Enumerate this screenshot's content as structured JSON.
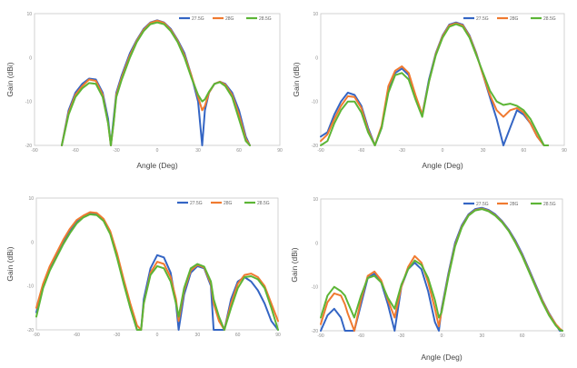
{
  "colors": {
    "27.5G": "#3465c4",
    "28G": "#f07a30",
    "28.5G": "#5cb536",
    "frame": "#c8c8c8"
  },
  "chart_data": [
    {
      "type": "line",
      "xlabel": "Angle (Deg)",
      "ylabel": "Gain (dBi)",
      "xlim": [
        -90,
        90
      ],
      "ylim": [
        -20,
        10
      ],
      "xticks": [
        "-90",
        "-60",
        "-30",
        "0",
        "30",
        "60",
        "90"
      ],
      "yticks": [
        "10",
        "0",
        "-10",
        "-20"
      ],
      "grid": false,
      "legend": "top-right",
      "series": [
        {
          "name": "27.5G",
          "x": [
            -70,
            -65,
            -60,
            -55,
            -50,
            -45,
            -40,
            -36,
            -34,
            -32,
            -30,
            -26,
            -20,
            -15,
            -10,
            -5,
            0,
            5,
            10,
            15,
            20,
            25,
            30,
            33,
            35,
            38,
            42,
            46,
            50,
            55,
            60,
            65,
            68
          ],
          "y": [
            -20,
            -12,
            -8,
            -6,
            -4.8,
            -5,
            -8,
            -14,
            -20,
            -14,
            -8,
            -4,
            1,
            4,
            6.5,
            8,
            8.5,
            8,
            6.5,
            4,
            1,
            -4,
            -10,
            -20,
            -12,
            -8,
            -6,
            -5.5,
            -6,
            -8,
            -12,
            -18,
            -20
          ]
        },
        {
          "name": "28G",
          "x": [
            -70,
            -65,
            -60,
            -55,
            -50,
            -45,
            -40,
            -36,
            -34,
            -32,
            -30,
            -26,
            -20,
            -15,
            -10,
            -5,
            0,
            5,
            10,
            15,
            20,
            25,
            30,
            33,
            35,
            38,
            42,
            46,
            50,
            55,
            60,
            65,
            68
          ],
          "y": [
            -20,
            -12.5,
            -8.5,
            -6.5,
            -5,
            -5.3,
            -8.5,
            -15,
            -20,
            -15,
            -8.5,
            -4.5,
            0.5,
            3.8,
            6.3,
            7.9,
            8.4,
            7.9,
            6.3,
            3.8,
            0.5,
            -4,
            -9,
            -12,
            -11,
            -8,
            -6,
            -5.5,
            -6.2,
            -8.5,
            -13,
            -18.5,
            -20
          ]
        },
        {
          "name": "28.5G",
          "x": [
            -70,
            -65,
            -60,
            -55,
            -50,
            -45,
            -40,
            -36,
            -34,
            -32,
            -30,
            -26,
            -20,
            -15,
            -10,
            -5,
            0,
            5,
            10,
            15,
            20,
            25,
            30,
            33,
            35,
            38,
            42,
            46,
            50,
            55,
            60,
            65,
            68
          ],
          "y": [
            -20,
            -13,
            -9,
            -7,
            -5.8,
            -6,
            -9,
            -15,
            -20,
            -15,
            -9,
            -5,
            0,
            3.5,
            6,
            7.6,
            8,
            7.6,
            6,
            3.5,
            0,
            -4.5,
            -8.5,
            -10,
            -9.5,
            -7.8,
            -6,
            -5.6,
            -6.5,
            -9,
            -14,
            -19,
            -20
          ]
        }
      ]
    },
    {
      "type": "line",
      "xlabel": "Angle (Deg)",
      "ylabel": "Gain (dBi)",
      "xlim": [
        -90,
        90
      ],
      "ylim": [
        -20,
        10
      ],
      "xticks": [
        "-90",
        "-60",
        "-30",
        "0",
        "30",
        "60",
        "90"
      ],
      "yticks": [
        "10",
        "0",
        "-10",
        "-20"
      ],
      "grid": false,
      "legend": "top-right",
      "series": [
        {
          "name": "27.5G",
          "x": [
            -90,
            -85,
            -80,
            -75,
            -70,
            -65,
            -60,
            -55,
            -50,
            -45,
            -40,
            -35,
            -30,
            -25,
            -20,
            -15,
            -10,
            -5,
            0,
            5,
            10,
            15,
            20,
            25,
            30,
            35,
            40,
            45,
            50,
            55,
            60,
            65,
            70,
            75,
            78
          ],
          "y": [
            -18,
            -17,
            -13,
            -10,
            -8,
            -8.5,
            -11,
            -16,
            -20,
            -16,
            -7,
            -3.5,
            -2.5,
            -4,
            -9,
            -13,
            -5,
            1,
            5,
            7.5,
            8,
            7.5,
            5,
            1,
            -4,
            -9,
            -14,
            -20,
            -16,
            -12,
            -13,
            -15,
            -18,
            -20,
            -20
          ]
        },
        {
          "name": "28G",
          "x": [
            -90,
            -85,
            -80,
            -75,
            -70,
            -65,
            -60,
            -55,
            -50,
            -45,
            -40,
            -35,
            -30,
            -25,
            -20,
            -15,
            -10,
            -5,
            0,
            5,
            10,
            15,
            20,
            25,
            30,
            35,
            40,
            45,
            50,
            55,
            60,
            65,
            70,
            75,
            78
          ],
          "y": [
            -19,
            -17.5,
            -14,
            -11,
            -8.8,
            -9,
            -11.5,
            -16.5,
            -20,
            -15.5,
            -6.5,
            -3,
            -2,
            -3.5,
            -8.5,
            -13,
            -5.5,
            0.8,
            4.8,
            7.3,
            7.8,
            7.3,
            4.8,
            0.8,
            -4,
            -8.5,
            -12,
            -13.5,
            -12,
            -11.5,
            -12.5,
            -15,
            -18,
            -20,
            -20
          ]
        },
        {
          "name": "28.5G",
          "x": [
            -90,
            -85,
            -80,
            -75,
            -70,
            -65,
            -60,
            -55,
            -50,
            -45,
            -40,
            -35,
            -30,
            -25,
            -20,
            -15,
            -10,
            -5,
            0,
            5,
            10,
            15,
            20,
            25,
            30,
            35,
            40,
            45,
            50,
            55,
            60,
            65,
            70,
            75,
            78
          ],
          "y": [
            -20,
            -19,
            -15,
            -12,
            -10,
            -10,
            -12.5,
            -17,
            -20,
            -16,
            -8,
            -4,
            -3.5,
            -5,
            -9.5,
            -13.5,
            -5.5,
            0.5,
            4.5,
            7,
            7.6,
            7,
            4.5,
            0.5,
            -3.5,
            -7.5,
            -10,
            -10.8,
            -10.5,
            -11,
            -12,
            -14,
            -17,
            -20,
            -20
          ]
        }
      ]
    },
    {
      "type": "line",
      "xlabel": "",
      "ylabel": "Gain (dBi)",
      "xlim": [
        -90,
        90
      ],
      "ylim": [
        -20,
        10
      ],
      "xticks": [
        "-90",
        "-60",
        "-30",
        "0",
        "30",
        "60",
        "90"
      ],
      "yticks": [
        "10",
        "0",
        "-10",
        "-20"
      ],
      "grid": false,
      "legend": "top-right",
      "series": [
        {
          "name": "27.5G",
          "x": [
            -90,
            -85,
            -80,
            -75,
            -70,
            -65,
            -60,
            -55,
            -50,
            -45,
            -40,
            -35,
            -30,
            -25,
            -20,
            -15,
            -12,
            -10,
            -5,
            0,
            5,
            10,
            14,
            16,
            20,
            25,
            30,
            35,
            40,
            42,
            46,
            50,
            55,
            60,
            65,
            70,
            75,
            80,
            85,
            90
          ],
          "y": [
            -16,
            -10,
            -6,
            -3,
            0,
            2.5,
            4.5,
            5.8,
            6.5,
            6.3,
            5,
            2,
            -3,
            -9,
            -15,
            -20,
            -20,
            -13,
            -6,
            -3,
            -3.5,
            -7,
            -14,
            -20,
            -12,
            -7,
            -5.5,
            -6,
            -10,
            -20,
            -20,
            -20,
            -13,
            -9,
            -8,
            -9,
            -11,
            -14,
            -18,
            -20
          ]
        },
        {
          "name": "28G",
          "x": [
            -90,
            -85,
            -80,
            -75,
            -70,
            -65,
            -60,
            -55,
            -50,
            -45,
            -40,
            -35,
            -30,
            -25,
            -20,
            -15,
            -12,
            -10,
            -5,
            0,
            5,
            10,
            14,
            16,
            20,
            25,
            30,
            35,
            40,
            42,
            46,
            50,
            55,
            60,
            65,
            70,
            75,
            80,
            85,
            90
          ],
          "y": [
            -15,
            -9.5,
            -5.5,
            -2.5,
            0.5,
            3,
            5,
            6,
            6.8,
            6.6,
            5.3,
            2.5,
            -2.5,
            -8.5,
            -14,
            -19,
            -20,
            -14,
            -7,
            -4.5,
            -5,
            -8,
            -13,
            -18,
            -11,
            -6.5,
            -5.2,
            -5.8,
            -9.5,
            -14,
            -18,
            -20,
            -14,
            -9.5,
            -7.5,
            -7.2,
            -8,
            -10,
            -14,
            -18
          ]
        },
        {
          "name": "28.5G",
          "x": [
            -90,
            -85,
            -80,
            -75,
            -70,
            -65,
            -60,
            -55,
            -50,
            -45,
            -40,
            -35,
            -30,
            -25,
            -20,
            -15,
            -12,
            -10,
            -5,
            0,
            5,
            10,
            14,
            16,
            20,
            25,
            30,
            35,
            40,
            42,
            46,
            50,
            55,
            60,
            65,
            70,
            75,
            80,
            85,
            90
          ],
          "y": [
            -17,
            -10.5,
            -6.5,
            -3.5,
            -0.5,
            2,
            4.2,
            5.6,
            6.3,
            6.1,
            4.8,
            1.8,
            -3.5,
            -9.5,
            -15,
            -20,
            -20,
            -14,
            -7.5,
            -5.5,
            -6,
            -9,
            -14,
            -17,
            -10.5,
            -6,
            -5,
            -5.6,
            -9,
            -13,
            -17,
            -20,
            -15,
            -10.5,
            -8,
            -7.8,
            -8.5,
            -10.5,
            -15,
            -20
          ]
        }
      ]
    },
    {
      "type": "line",
      "xlabel": "Angle (Deg)",
      "ylabel": "Gain (dBi)",
      "xlim": [
        -90,
        90
      ],
      "ylim": [
        -20,
        10
      ],
      "xticks": [
        "-90",
        "-60",
        "-30",
        "0",
        "30",
        "60",
        "90"
      ],
      "yticks": [
        "10",
        "0",
        "-10",
        "-20"
      ],
      "grid": false,
      "legend": "top-right",
      "series": [
        {
          "name": "27.5G",
          "x": [
            -90,
            -85,
            -80,
            -75,
            -72,
            -70,
            -65,
            -60,
            -55,
            -50,
            -45,
            -40,
            -35,
            -30,
            -25,
            -20,
            -15,
            -10,
            -5,
            -2,
            0,
            5,
            10,
            15,
            20,
            25,
            30,
            35,
            40,
            45,
            50,
            55,
            60,
            65,
            70,
            75,
            80,
            85,
            88,
            90
          ],
          "y": [
            -20,
            -16.5,
            -15,
            -17,
            -20,
            -20,
            -20,
            -14,
            -8,
            -7,
            -9,
            -14,
            -20,
            -10,
            -6,
            -4.5,
            -6,
            -11,
            -18,
            -20,
            -15,
            -7,
            0,
            4,
            6.5,
            7.7,
            8,
            7.5,
            6.5,
            5,
            3,
            0.5,
            -2.5,
            -6,
            -9.5,
            -13,
            -16,
            -18.5,
            -20,
            -20
          ]
        },
        {
          "name": "28G",
          "x": [
            -90,
            -85,
            -80,
            -75,
            -72,
            -70,
            -65,
            -60,
            -55,
            -50,
            -45,
            -40,
            -35,
            -30,
            -25,
            -20,
            -15,
            -10,
            -5,
            -2,
            0,
            5,
            10,
            15,
            20,
            25,
            30,
            35,
            40,
            45,
            50,
            55,
            60,
            65,
            70,
            75,
            80,
            85,
            88,
            90
          ],
          "y": [
            -18.5,
            -13.5,
            -11.5,
            -12,
            -14,
            -16,
            -20,
            -13,
            -7.5,
            -6.5,
            -8.5,
            -13,
            -17,
            -10,
            -5.5,
            -3,
            -4.5,
            -9,
            -15,
            -19,
            -15.5,
            -7.5,
            -0.5,
            3.7,
            6.3,
            7.5,
            7.8,
            7.3,
            6.3,
            4.8,
            2.8,
            0.2,
            -2.8,
            -6.3,
            -9.8,
            -13.2,
            -16.2,
            -18.5,
            -19.5,
            -20
          ]
        },
        {
          "name": "28.5G",
          "x": [
            -90,
            -85,
            -80,
            -75,
            -72,
            -70,
            -65,
            -60,
            -55,
            -50,
            -45,
            -40,
            -35,
            -30,
            -25,
            -20,
            -15,
            -10,
            -5,
            -2,
            0,
            5,
            10,
            15,
            20,
            25,
            30,
            35,
            40,
            45,
            50,
            55,
            60,
            65,
            70,
            75,
            80,
            85,
            88,
            90
          ],
          "y": [
            -17,
            -12,
            -10,
            -11,
            -12,
            -13.5,
            -17,
            -12,
            -8,
            -7.5,
            -9,
            -12.5,
            -15,
            -9.5,
            -6,
            -4,
            -5,
            -8,
            -13,
            -17,
            -15.8,
            -7.8,
            -0.8,
            3.5,
            6.2,
            7.4,
            7.7,
            7.2,
            6.2,
            4.7,
            2.7,
            0,
            -3,
            -6.5,
            -10,
            -13.5,
            -16.5,
            -18.8,
            -19.8,
            -20
          ]
        }
      ]
    }
  ]
}
